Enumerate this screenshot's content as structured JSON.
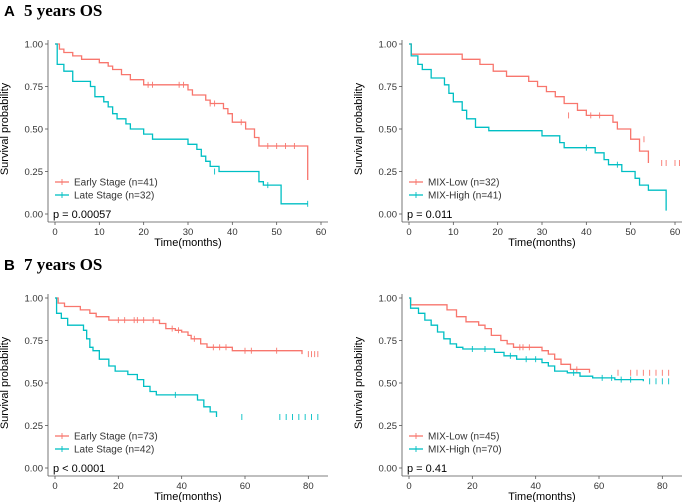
{
  "panels": [
    {
      "letter": "A",
      "title": "5 years OS"
    },
    {
      "letter": "B",
      "title": "7 years OS"
    }
  ],
  "colors": {
    "red": "#F8766D",
    "teal": "#00BFC4"
  },
  "chart_data": [
    {
      "type": "line",
      "subtype": "kaplan-meier",
      "panel": "A",
      "xlabel": "Time(months)",
      "ylabel": "Survival probability",
      "xlim": [
        0,
        60
      ],
      "ylim": [
        0,
        1
      ],
      "xticks": [
        0,
        10,
        20,
        30,
        40,
        50,
        60
      ],
      "yticks": [
        0.0,
        0.25,
        0.5,
        0.75,
        1.0
      ],
      "pvalue": "p = 0.00057",
      "series": [
        {
          "name": "Early Stage (n=41)",
          "color": "#F8766D",
          "steps": [
            [
              0,
              1.0
            ],
            [
              1,
              0.97
            ],
            [
              2,
              0.95
            ],
            [
              4,
              0.93
            ],
            [
              6,
              0.91
            ],
            [
              10,
              0.89
            ],
            [
              12,
              0.87
            ],
            [
              13,
              0.85
            ],
            [
              15,
              0.82
            ],
            [
              17,
              0.79
            ],
            [
              20,
              0.76
            ],
            [
              30,
              0.73
            ],
            [
              31,
              0.7
            ],
            [
              34,
              0.67
            ],
            [
              35,
              0.65
            ],
            [
              38,
              0.62
            ],
            [
              39,
              0.59
            ],
            [
              40,
              0.54
            ],
            [
              43,
              0.5
            ],
            [
              45,
              0.45
            ],
            [
              46,
              0.4
            ],
            [
              57,
              0.2
            ]
          ],
          "censors": [
            [
              21,
              0.76
            ],
            [
              22,
              0.76
            ],
            [
              28,
              0.76
            ],
            [
              29,
              0.76
            ],
            [
              35,
              0.65
            ],
            [
              36,
              0.65
            ],
            [
              42,
              0.54
            ],
            [
              48,
              0.4
            ],
            [
              50,
              0.4
            ],
            [
              52,
              0.4
            ],
            [
              54,
              0.4
            ]
          ]
        },
        {
          "name": "Late Stage (n=32)",
          "color": "#00BFC4",
          "steps": [
            [
              0,
              1.0
            ],
            [
              0.5,
              0.88
            ],
            [
              2,
              0.84
            ],
            [
              4,
              0.78
            ],
            [
              8,
              0.75
            ],
            [
              9,
              0.69
            ],
            [
              11,
              0.66
            ],
            [
              12,
              0.63
            ],
            [
              13,
              0.59
            ],
            [
              14,
              0.56
            ],
            [
              16,
              0.53
            ],
            [
              17,
              0.5
            ],
            [
              20,
              0.47
            ],
            [
              22,
              0.44
            ],
            [
              30,
              0.41
            ],
            [
              32,
              0.38
            ],
            [
              33,
              0.34
            ],
            [
              34,
              0.31
            ],
            [
              35,
              0.28
            ],
            [
              37,
              0.25
            ],
            [
              46,
              0.19
            ],
            [
              47,
              0.17
            ],
            [
              51,
              0.06
            ],
            [
              57,
              0.06
            ]
          ],
          "censors": [
            [
              36,
              0.25
            ],
            [
              48,
              0.17
            ],
            [
              57,
              0.06
            ]
          ]
        }
      ]
    },
    {
      "type": "line",
      "subtype": "kaplan-meier",
      "panel": "A",
      "xlabel": "Time(months)",
      "ylabel": "Survival probability",
      "xlim": [
        0,
        60
      ],
      "ylim": [
        0,
        1
      ],
      "xticks": [
        0,
        10,
        20,
        30,
        40,
        50,
        60
      ],
      "yticks": [
        0.0,
        0.25,
        0.5,
        0.75,
        1.0
      ],
      "pvalue": "p = 0.011",
      "series": [
        {
          "name": "MIX-Low (n=32)",
          "color": "#F8766D",
          "steps": [
            [
              0,
              1.0
            ],
            [
              0.5,
              0.94
            ],
            [
              12,
              0.91
            ],
            [
              16,
              0.88
            ],
            [
              19,
              0.84
            ],
            [
              22,
              0.81
            ],
            [
              27,
              0.78
            ],
            [
              29,
              0.75
            ],
            [
              31,
              0.72
            ],
            [
              33,
              0.69
            ],
            [
              35,
              0.65
            ],
            [
              38,
              0.61
            ],
            [
              40,
              0.58
            ],
            [
              46,
              0.54
            ],
            [
              47,
              0.5
            ],
            [
              50,
              0.44
            ],
            [
              52,
              0.37
            ],
            [
              54,
              0.3
            ]
          ],
          "censors": [
            [
              36,
              0.58
            ],
            [
              41,
              0.58
            ],
            [
              43,
              0.58
            ],
            [
              53,
              0.44
            ],
            [
              57,
              0.3
            ],
            [
              58,
              0.3
            ],
            [
              60,
              0.3
            ],
            [
              61,
              0.3
            ]
          ]
        },
        {
          "name": "MIX-High (n=41)",
          "color": "#00BFC4",
          "steps": [
            [
              0,
              1.0
            ],
            [
              0.5,
              0.93
            ],
            [
              2,
              0.88
            ],
            [
              3,
              0.85
            ],
            [
              5,
              0.8
            ],
            [
              8,
              0.76
            ],
            [
              9,
              0.71
            ],
            [
              10,
              0.66
            ],
            [
              12,
              0.61
            ],
            [
              13,
              0.56
            ],
            [
              15,
              0.51
            ],
            [
              18,
              0.49
            ],
            [
              30,
              0.46
            ],
            [
              34,
              0.42
            ],
            [
              35,
              0.39
            ],
            [
              42,
              0.36
            ],
            [
              44,
              0.32
            ],
            [
              45,
              0.29
            ],
            [
              48,
              0.25
            ],
            [
              51,
              0.21
            ],
            [
              52,
              0.17
            ],
            [
              54,
              0.14
            ],
            [
              58,
              0.02
            ]
          ],
          "censors": [
            [
              40,
              0.39
            ],
            [
              47,
              0.29
            ]
          ]
        }
      ]
    },
    {
      "type": "line",
      "subtype": "kaplan-meier",
      "panel": "B",
      "xlabel": "Time(months)",
      "ylabel": "Survival probability",
      "xlim": [
        0,
        84
      ],
      "ylim": [
        0,
        1
      ],
      "xticks": [
        0,
        20,
        40,
        60,
        80
      ],
      "yticks": [
        0.0,
        0.25,
        0.5,
        0.75,
        1.0
      ],
      "pvalue": "p < 0.0001",
      "series": [
        {
          "name": "Early Stage (n=73)",
          "color": "#F8766D",
          "steps": [
            [
              0,
              1.0
            ],
            [
              1,
              0.97
            ],
            [
              3,
              0.95
            ],
            [
              8,
              0.93
            ],
            [
              11,
              0.91
            ],
            [
              13,
              0.89
            ],
            [
              17,
              0.87
            ],
            [
              33,
              0.85
            ],
            [
              35,
              0.82
            ],
            [
              38,
              0.81
            ],
            [
              40,
              0.8
            ],
            [
              42,
              0.78
            ],
            [
              43,
              0.76
            ],
            [
              46,
              0.73
            ],
            [
              48,
              0.71
            ],
            [
              56,
              0.69
            ],
            [
              78,
              0.67
            ]
          ],
          "censors": [
            [
              20,
              0.87
            ],
            [
              22,
              0.87
            ],
            [
              25,
              0.87
            ],
            [
              26,
              0.87
            ],
            [
              28,
              0.87
            ],
            [
              31,
              0.87
            ],
            [
              37,
              0.82
            ],
            [
              39,
              0.81
            ],
            [
              44,
              0.76
            ],
            [
              50,
              0.71
            ],
            [
              52,
              0.71
            ],
            [
              54,
              0.71
            ],
            [
              60,
              0.69
            ],
            [
              62,
              0.69
            ],
            [
              70,
              0.69
            ],
            [
              80,
              0.67
            ],
            [
              81,
              0.67
            ],
            [
              82,
              0.67
            ],
            [
              83,
              0.67
            ]
          ]
        },
        {
          "name": "Late Stage (n=42)",
          "color": "#00BFC4",
          "steps": [
            [
              0,
              1.0
            ],
            [
              0.5,
              0.91
            ],
            [
              2,
              0.88
            ],
            [
              4,
              0.84
            ],
            [
              9,
              0.81
            ],
            [
              10,
              0.76
            ],
            [
              11,
              0.71
            ],
            [
              12,
              0.69
            ],
            [
              14,
              0.64
            ],
            [
              17,
              0.6
            ],
            [
              19,
              0.57
            ],
            [
              23,
              0.55
            ],
            [
              26,
              0.52
            ],
            [
              28,
              0.48
            ],
            [
              30,
              0.45
            ],
            [
              32,
              0.43
            ],
            [
              45,
              0.4
            ],
            [
              47,
              0.36
            ],
            [
              49,
              0.33
            ],
            [
              51,
              0.3
            ]
          ],
          "censors": [
            [
              38,
              0.43
            ],
            [
              59,
              0.3
            ],
            [
              71,
              0.3
            ],
            [
              73,
              0.3
            ],
            [
              75,
              0.3
            ],
            [
              77,
              0.3
            ],
            [
              79,
              0.3
            ],
            [
              81,
              0.3
            ],
            [
              83,
              0.3
            ]
          ]
        }
      ]
    },
    {
      "type": "line",
      "subtype": "kaplan-meier",
      "panel": "B",
      "xlabel": "Time(months)",
      "ylabel": "Survival probability",
      "xlim": [
        0,
        84
      ],
      "ylim": [
        0,
        1
      ],
      "xticks": [
        0,
        20,
        40,
        60,
        80
      ],
      "yticks": [
        0.0,
        0.25,
        0.5,
        0.75,
        1.0
      ],
      "pvalue": "p = 0.41",
      "series": [
        {
          "name": "MIX-Low (n=45)",
          "color": "#F8766D",
          "steps": [
            [
              0,
              1.0
            ],
            [
              0.5,
              0.96
            ],
            [
              12,
              0.93
            ],
            [
              15,
              0.89
            ],
            [
              18,
              0.86
            ],
            [
              22,
              0.84
            ],
            [
              24,
              0.82
            ],
            [
              26,
              0.78
            ],
            [
              29,
              0.75
            ],
            [
              31,
              0.73
            ],
            [
              33,
              0.71
            ],
            [
              42,
              0.69
            ],
            [
              44,
              0.67
            ],
            [
              46,
              0.64
            ],
            [
              48,
              0.61
            ],
            [
              51,
              0.58
            ],
            [
              57,
              0.56
            ]
          ],
          "censors": [
            [
              35,
              0.71
            ],
            [
              36,
              0.71
            ],
            [
              38,
              0.71
            ],
            [
              53,
              0.58
            ],
            [
              66,
              0.56
            ],
            [
              70,
              0.56
            ],
            [
              72,
              0.56
            ],
            [
              74,
              0.56
            ],
            [
              76,
              0.56
            ],
            [
              78,
              0.56
            ],
            [
              80,
              0.56
            ],
            [
              82,
              0.56
            ]
          ]
        },
        {
          "name": "MIX-High (n=70)",
          "color": "#00BFC4",
          "steps": [
            [
              0,
              1.0
            ],
            [
              0.5,
              0.94
            ],
            [
              3,
              0.91
            ],
            [
              5,
              0.87
            ],
            [
              7,
              0.84
            ],
            [
              9,
              0.8
            ],
            [
              11,
              0.76
            ],
            [
              13,
              0.73
            ],
            [
              15,
              0.71
            ],
            [
              17,
              0.7
            ],
            [
              27,
              0.68
            ],
            [
              30,
              0.66
            ],
            [
              34,
              0.64
            ],
            [
              42,
              0.62
            ],
            [
              44,
              0.6
            ],
            [
              46,
              0.57
            ],
            [
              50,
              0.56
            ],
            [
              54,
              0.54
            ],
            [
              58,
              0.53
            ],
            [
              65,
              0.52
            ],
            [
              74,
              0.51
            ]
          ],
          "censors": [
            [
              20,
              0.7
            ],
            [
              24,
              0.7
            ],
            [
              32,
              0.66
            ],
            [
              37,
              0.64
            ],
            [
              40,
              0.64
            ],
            [
              52,
              0.56
            ],
            [
              61,
              0.53
            ],
            [
              64,
              0.53
            ],
            [
              67,
              0.52
            ],
            [
              70,
              0.52
            ],
            [
              76,
              0.51
            ],
            [
              78,
              0.51
            ],
            [
              80,
              0.51
            ],
            [
              82,
              0.51
            ]
          ]
        }
      ]
    }
  ]
}
